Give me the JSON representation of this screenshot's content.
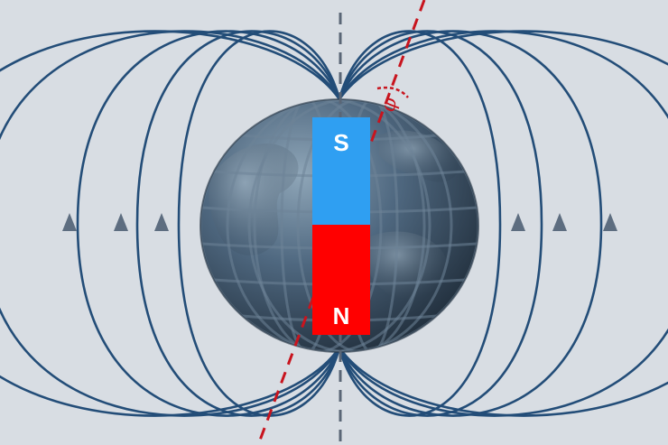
{
  "magnet": {
    "top_pole_label": "S",
    "bottom_pole_label": "N",
    "top_pole_color": "#2f9ff2",
    "bottom_pole_color": "#ff0000"
  },
  "declination_symbol": "φ",
  "colors": {
    "background": "#d8dde3",
    "field_line": "#234d78",
    "arrow": "#5d6d80",
    "geographic_axis": "#5a6676",
    "magnetic_axis": "#c8141e",
    "globe_light": "#8fa6b8",
    "globe_dark": "#1f2c39"
  },
  "icons": [
    "field-direction-arrow-icon"
  ]
}
